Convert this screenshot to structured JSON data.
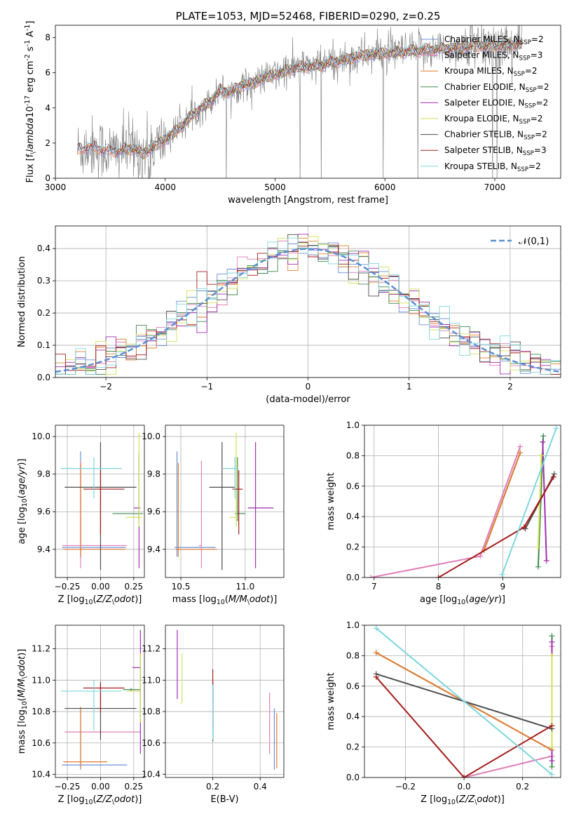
{
  "colors": {
    "Chabrier MILES": "#6a8fd8",
    "Salpeter MILES": "#e07fb8",
    "Kroupa MILES": "#e37d2a",
    "Chabrier ELODIE": "#3f8a4f",
    "Salpeter ELODIE": "#a12fb0",
    "Kroupa ELODIE": "#d4e158",
    "Chabrier STELIB": "#4d4d4d",
    "Salpeter STELIB": "#a51d1d",
    "Kroupa STELIB": "#7fd6e0",
    "data": "#808080",
    "normal": "#5b8fd4"
  },
  "chart_data": [
    {
      "id": "spectrum",
      "type": "line",
      "title": "PLATE=1053, MJD=52468, FIBERID=0290, z=0.25",
      "xlabel": "wavelength [Angstrom, rest frame]",
      "ylabel": "Flux [f$_\\lambda$10$^{-17}$ erg cm$^{-2}$ s$^{-1}$ A$^{-1}$]",
      "xlim": [
        3000,
        7600
      ],
      "ylim": [
        0,
        8.7
      ],
      "xticks": [
        3000,
        4000,
        5000,
        6000,
        7000
      ],
      "yticks": [
        0,
        2,
        4,
        6,
        8
      ],
      "legend_position": "top-right",
      "legend": [
        "Chabrier MILES, N$_{SSP}$=2",
        "Salpeter MILES, N$_{SSP}$=3",
        "Kroupa MILES, N$_{SSP}$=2",
        "Chabrier ELODIE, N$_{SSP}$=2",
        "Salpeter ELODIE, N$_{SSP}$=2",
        "Kroupa ELODIE, N$_{SSP}$=2",
        "Chabrier STELIB, N$_{SSP}$=2",
        "Salpeter STELIB, N$_{SSP}$=3",
        "Kroupa STELIB, N$_{SSP}$=2"
      ],
      "model_continuum": {
        "x": [
          3200,
          3300,
          3400,
          3500,
          3600,
          3700,
          3800,
          3900,
          4000,
          4100,
          4200,
          4300,
          4400,
          4500,
          4600,
          4700,
          4800,
          4900,
          5000,
          5200,
          5400,
          5600,
          5800,
          6000,
          6200,
          6400,
          6600,
          6800,
          7000,
          7200
        ],
        "y": [
          1.6,
          1.8,
          1.7,
          1.5,
          1.6,
          1.7,
          1.4,
          1.8,
          2.2,
          2.7,
          3.3,
          3.9,
          4.3,
          5.0,
          4.9,
          5.3,
          5.4,
          5.7,
          5.9,
          6.3,
          6.4,
          6.7,
          7.0,
          7.1,
          7.2,
          7.3,
          7.4,
          7.5,
          7.5,
          7.6
        ]
      }
    },
    {
      "id": "residuals",
      "type": "line",
      "xlabel": "(data-model)/error",
      "ylabel": "Normed distribution",
      "xlim": [
        -2.5,
        2.5
      ],
      "ylim": [
        0,
        0.47
      ],
      "xticks": [
        -2,
        -1,
        0,
        1,
        2
      ],
      "yticks": [
        0.0,
        0.1,
        0.2,
        0.3,
        0.4
      ],
      "grid": true,
      "legend_position": "top-right",
      "legend": [
        "$\\mathcal{N}(0,1)$"
      ],
      "normal": {
        "mean": 0,
        "sigma": 1
      }
    },
    {
      "id": "age-vs-Z",
      "type": "scatter",
      "xlabel": "Z [log$_{10}$($Z/Z_\\odot$)]",
      "ylabel": "age  [log$_{10}$($age/yr$)]",
      "xlim": [
        -0.34,
        0.33
      ],
      "ylim": [
        9.25,
        10.06
      ],
      "xticks": [
        -0.25,
        0.0,
        0.25
      ],
      "yticks": [
        9.4,
        9.6,
        9.8,
        10.0
      ],
      "grid": true,
      "points": [
        {
          "model": "Chabrier MILES",
          "x": -0.15,
          "y": 9.41,
          "xerr": [
            0.14,
            0.34
          ],
          "yerr": [
            0.05,
            0.51
          ]
        },
        {
          "model": "Salpeter MILES",
          "x": -0.15,
          "y": 9.42,
          "xerr": [
            0.14,
            0.35
          ],
          "yerr": [
            0.12,
            0.45
          ]
        },
        {
          "model": "Kroupa MILES",
          "x": -0.15,
          "y": 9.4,
          "xerr": [
            0.13,
            0.34
          ],
          "yerr": [
            0.04,
            0.46
          ]
        },
        {
          "model": "Chabrier ELODIE",
          "x": 0.29,
          "y": 9.59,
          "xerr": [
            0.2,
            0.03
          ],
          "yerr": [
            0.04,
            0.3
          ]
        },
        {
          "model": "Salpeter ELODIE",
          "x": 0.29,
          "y": 9.62,
          "xerr": [
            0.04,
            0.01
          ],
          "yerr": [
            0.32,
            0.3
          ]
        },
        {
          "model": "Kroupa ELODIE",
          "x": 0.29,
          "y": 9.57,
          "xerr": [
            0.1,
            0.02
          ],
          "yerr": [
            0.05,
            0.45
          ]
        },
        {
          "model": "Chabrier STELIB",
          "x": 0.0,
          "y": 9.73,
          "xerr": [
            0.27,
            0.27
          ],
          "yerr": [
            0.44,
            0.24
          ]
        },
        {
          "model": "Salpeter STELIB",
          "x": 0.0,
          "y": 9.72,
          "xerr": [
            0.13,
            0.18
          ],
          "yerr": [
            0.24,
            0.1
          ]
        },
        {
          "model": "Kroupa STELIB",
          "x": -0.05,
          "y": 9.83,
          "xerr": [
            0.25,
            0.21
          ],
          "yerr": [
            0.16,
            0.06
          ]
        }
      ]
    },
    {
      "id": "age-vs-mass",
      "type": "scatter",
      "xlabel": "mass [log$_{10}$($M/M_\\odot$)]",
      "ylabel": "",
      "xlim": [
        10.38,
        11.3
      ],
      "ylim": [
        9.25,
        10.06
      ],
      "xticks": [
        10.5,
        11.0
      ],
      "yticks": [
        9.4,
        9.6,
        9.8,
        10.0
      ],
      "grid": true,
      "points": [
        {
          "model": "Chabrier MILES",
          "x": 10.47,
          "y": 9.41,
          "xerr": [
            0.02,
            0.3
          ],
          "yerr": [
            0.05,
            0.51
          ]
        },
        {
          "model": "Salpeter MILES",
          "x": 10.66,
          "y": 9.42,
          "xerr": [
            0.02,
            0.0
          ],
          "yerr": [
            0.12,
            0.45
          ]
        },
        {
          "model": "Kroupa MILES",
          "x": 10.48,
          "y": 9.4,
          "xerr": [
            0.02,
            0.3
          ],
          "yerr": [
            0.04,
            0.46
          ]
        },
        {
          "model": "Chabrier ELODIE",
          "x": 10.94,
          "y": 9.59,
          "xerr": [
            0.02,
            0.06
          ],
          "yerr": [
            0.04,
            0.3
          ]
        },
        {
          "model": "Salpeter ELODIE",
          "x": 11.08,
          "y": 9.62,
          "xerr": [
            0.06,
            0.14
          ],
          "yerr": [
            0.32,
            0.35
          ]
        },
        {
          "model": "Kroupa ELODIE",
          "x": 10.93,
          "y": 9.57,
          "xerr": [
            0.05,
            0.02
          ],
          "yerr": [
            0.05,
            0.45
          ]
        },
        {
          "model": "Chabrier STELIB",
          "x": 10.82,
          "y": 9.73,
          "xerr": [
            0.1,
            0.1
          ],
          "yerr": [
            0.44,
            0.24
          ]
        },
        {
          "model": "Salpeter STELIB",
          "x": 10.95,
          "y": 9.72,
          "xerr": [
            0.05,
            0.03
          ],
          "yerr": [
            0.24,
            0.1
          ]
        },
        {
          "model": "Kroupa STELIB",
          "x": 10.92,
          "y": 9.83,
          "xerr": [
            0.1,
            0.02
          ],
          "yerr": [
            0.16,
            0.06
          ]
        }
      ]
    },
    {
      "id": "weight-vs-age",
      "type": "line",
      "xlabel": "age  [log$_{10}$($age/yr$)]",
      "ylabel": "mass weight",
      "xlim": [
        6.85,
        9.9
      ],
      "ylim": [
        0,
        1.0
      ],
      "xticks": [
        7,
        8,
        9
      ],
      "yticks": [
        0.0,
        0.2,
        0.4,
        0.6,
        0.8,
        1.0
      ],
      "grid": true,
      "series": [
        {
          "model": "Chabrier MILES",
          "x": [
            8.71,
            9.27
          ],
          "y": [
            0.18,
            0.82
          ]
        },
        {
          "model": "Salpeter MILES",
          "x": [
            6.95,
            8.65,
            9.27
          ],
          "y": [
            0.0,
            0.14,
            0.86
          ]
        },
        {
          "model": "Kroupa MILES",
          "x": [
            8.71,
            9.27
          ],
          "y": [
            0.18,
            0.82
          ]
        },
        {
          "model": "Chabrier ELODIE",
          "x": [
            9.55,
            9.63
          ],
          "y": [
            0.07,
            0.93
          ]
        },
        {
          "model": "Salpeter ELODIE",
          "x": [
            9.62,
            9.68
          ],
          "y": [
            0.89,
            0.11
          ]
        },
        {
          "model": "Kroupa ELODIE",
          "x": [
            9.55,
            9.6
          ],
          "y": [
            0.2,
            0.8
          ]
        },
        {
          "model": "Chabrier STELIB",
          "x": [
            9.35,
            9.8
          ],
          "y": [
            0.32,
            0.68
          ]
        },
        {
          "model": "Salpeter STELIB",
          "x": [
            8.0,
            9.33,
            9.79
          ],
          "y": [
            0.0,
            0.33,
            0.66
          ]
        },
        {
          "model": "Kroupa STELIB",
          "x": [
            8.99,
            9.83
          ],
          "y": [
            0.02,
            0.98
          ]
        }
      ]
    },
    {
      "id": "mass-vs-Z",
      "type": "scatter",
      "xlabel": "Z [log$_{10}$($Z/Z_\\odot$)]",
      "ylabel": "mass [log$_{10}$($M/M_\\odot$)]",
      "xlim": [
        -0.34,
        0.33
      ],
      "ylim": [
        10.38,
        11.35
      ],
      "xticks": [
        -0.25,
        0.0,
        0.25
      ],
      "yticks": [
        10.4,
        10.6,
        10.8,
        11.0,
        11.2
      ],
      "grid": true,
      "points": [
        {
          "model": "Chabrier MILES",
          "x": -0.15,
          "y": 10.46,
          "xerr": [
            0.14,
            0.35
          ],
          "yerr": [
            0.03,
            0.36
          ]
        },
        {
          "model": "Salpeter MILES",
          "x": 0.0,
          "y": 10.67,
          "xerr": [
            0.27,
            0.3
          ],
          "yerr": [
            0.01,
            0.01
          ]
        },
        {
          "model": "Kroupa MILES",
          "x": -0.15,
          "y": 10.48,
          "xerr": [
            0.13,
            0.2
          ],
          "yerr": [
            0.04,
            0.35
          ]
        },
        {
          "model": "Chabrier ELODIE",
          "x": 0.23,
          "y": 10.94,
          "xerr": [
            0.06,
            0.07
          ],
          "yerr": [
            0.01,
            0.01
          ]
        },
        {
          "model": "Salpeter ELODIE",
          "x": 0.3,
          "y": 11.08,
          "xerr": [
            0.06,
            0.0
          ],
          "yerr": [
            0.55,
            0.24
          ]
        },
        {
          "model": "Kroupa ELODIE",
          "x": 0.3,
          "y": 10.93,
          "xerr": [
            0.1,
            0.0
          ],
          "yerr": [
            0.2,
            0.24
          ]
        },
        {
          "model": "Chabrier STELIB",
          "x": 0.0,
          "y": 10.82,
          "xerr": [
            0.27,
            0.27
          ],
          "yerr": [
            0.2,
            0.17
          ]
        },
        {
          "model": "Salpeter STELIB",
          "x": 0.0,
          "y": 10.95,
          "xerr": [
            0.13,
            0.18
          ],
          "yerr": [
            0.15,
            0.03
          ]
        },
        {
          "model": "Kroupa STELIB",
          "x": -0.05,
          "y": 10.93,
          "xerr": [
            0.25,
            0.21
          ],
          "yerr": [
            0.25,
            0.07
          ]
        }
      ]
    },
    {
      "id": "mass-vs-EBV",
      "type": "scatter",
      "xlabel": "E(B-V)",
      "ylabel": "",
      "xlim": [
        0.0,
        0.5
      ],
      "ylim": [
        10.38,
        11.35
      ],
      "xticks": [
        0.2,
        0.4
      ],
      "yticks": [
        10.4,
        10.6,
        10.8,
        11.0,
        11.2
      ],
      "grid": true,
      "points": [
        {
          "model": "Chabrier MILES",
          "x": 0.46,
          "y": 10.46,
          "yerr": [
            0.03,
            0.36
          ]
        },
        {
          "model": "Salpeter MILES",
          "x": 0.44,
          "y": 10.67,
          "yerr": [
            0.14,
            0.25
          ]
        },
        {
          "model": "Kroupa MILES",
          "x": 0.47,
          "y": 10.48,
          "yerr": [
            0.04,
            0.31
          ]
        },
        {
          "model": "Chabrier ELODIE",
          "x": 0.2,
          "y": 10.82,
          "yerr": [
            0.2,
            0.17
          ]
        },
        {
          "model": "Salpeter ELODIE",
          "x": 0.05,
          "y": 11.08,
          "yerr": [
            0.2,
            0.24
          ]
        },
        {
          "model": "Kroupa ELODIE",
          "x": 0.07,
          "y": 10.93,
          "yerr": [
            0.08,
            0.24
          ]
        },
        {
          "model": "Chabrier STELIB",
          "x": 0.2,
          "y": 10.82,
          "yerr": [
            0.21,
            0.17
          ]
        },
        {
          "model": "Salpeter STELIB",
          "x": 0.2,
          "y": 10.95,
          "yerr": [
            0.29,
            0.12
          ]
        },
        {
          "model": "Kroupa STELIB",
          "x": 0.2,
          "y": 10.82,
          "yerr": [
            0.2,
            0.15
          ]
        }
      ]
    },
    {
      "id": "weight-vs-Z",
      "type": "line",
      "xlabel": "Z [log$_{10}$($Z/Z_\\odot$)]",
      "ylabel": "mass weight",
      "xlim": [
        -0.34,
        0.33
      ],
      "ylim": [
        0,
        1.0
      ],
      "xticks": [
        -0.2,
        0.0,
        0.2
      ],
      "yticks": [
        0.0,
        0.2,
        0.4,
        0.6,
        0.8,
        1.0
      ],
      "grid": true,
      "series": [
        {
          "model": "Chabrier MILES",
          "x": [
            -0.3,
            0.3
          ],
          "y": [
            0.82,
            0.18
          ]
        },
        {
          "model": "Salpeter MILES",
          "x": [
            0.0,
            0.3,
            0.3
          ],
          "y": [
            0.0,
            0.14,
            0.86
          ]
        },
        {
          "model": "Kroupa MILES",
          "x": [
            -0.3,
            0.3
          ],
          "y": [
            0.82,
            0.18
          ]
        },
        {
          "model": "Chabrier ELODIE",
          "x": [
            0.3,
            0.3
          ],
          "y": [
            0.07,
            0.93
          ]
        },
        {
          "model": "Salpeter ELODIE",
          "x": [
            0.3,
            0.3
          ],
          "y": [
            0.89,
            0.11
          ]
        },
        {
          "model": "Kroupa ELODIE",
          "x": [
            0.3,
            0.3
          ],
          "y": [
            0.2,
            0.8
          ]
        },
        {
          "model": "Chabrier STELIB",
          "x": [
            -0.3,
            0.3
          ],
          "y": [
            0.68,
            0.32
          ]
        },
        {
          "model": "Salpeter STELIB",
          "x": [
            -0.3,
            0.0,
            0.3
          ],
          "y": [
            0.66,
            0.0,
            0.34
          ]
        },
        {
          "model": "Kroupa STELIB",
          "x": [
            -0.3,
            0.3
          ],
          "y": [
            0.98,
            0.02
          ]
        }
      ]
    }
  ]
}
